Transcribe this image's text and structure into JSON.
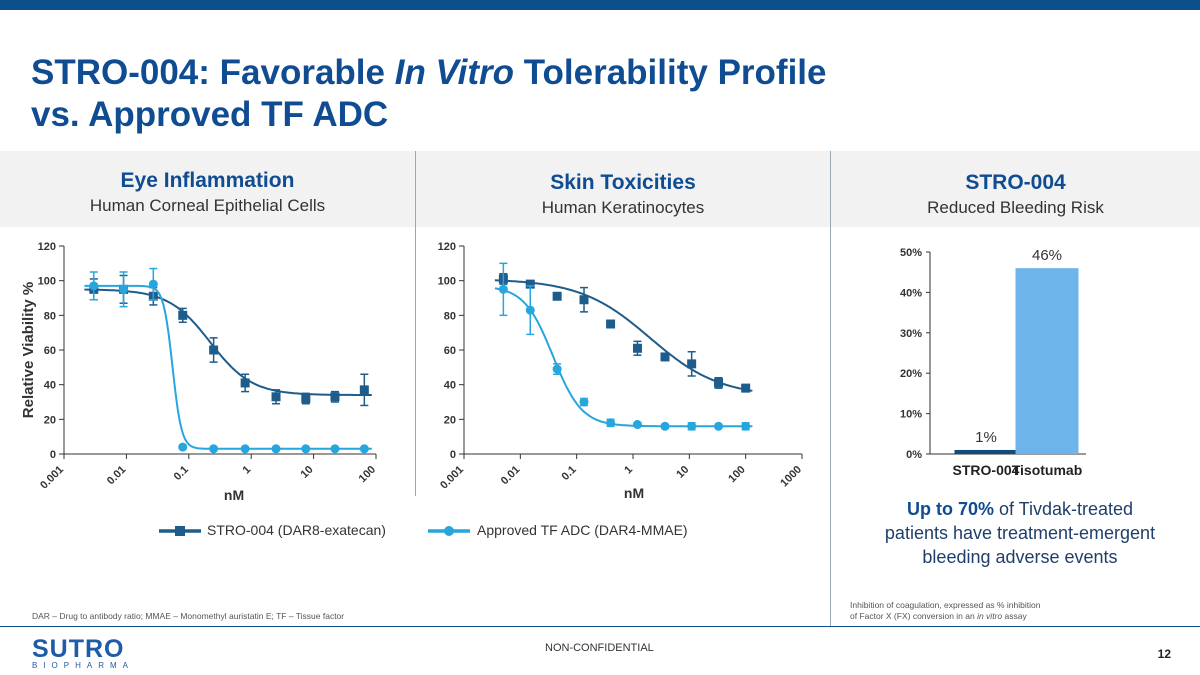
{
  "slide": {
    "title_part1": "STRO-004: Favorable",
    "title_italic": "In Vitro",
    "title_part2": "Tolerability Profile",
    "title_line2": "vs. Approved TF ADC",
    "page_number": "12",
    "confidentiality": "NON-CONFIDENTIAL",
    "logo": "SUTRO",
    "logo_sub": "BIOPHARMA"
  },
  "panels": [
    {
      "heading": "Eye Inflammation",
      "subheading": "Human Corneal Epithelial Cells"
    },
    {
      "heading": "Skin Toxicities",
      "subheading": "Human Keratinocytes"
    },
    {
      "heading": "STRO-004",
      "subheading": "Reduced Bleeding Risk"
    }
  ],
  "legend": {
    "stro004": "STRO-004 (DAR8-exatecan)",
    "approved": "Approved TF ADC (DAR4-MMAE)"
  },
  "colors": {
    "dark": "#1e5c8c",
    "light": "#27a6dd",
    "bar_dark": "#0f4c81",
    "bar_light": "#6cb4ea",
    "title": "#0f4c92"
  },
  "callout": {
    "bold": "Up to 70%",
    "rest1": " of Tivdak-treated",
    "line2": "patients have treatment-emergent",
    "line3": "bleeding adverse events"
  },
  "footnotes": {
    "left": "DAR – Drug to antibody ratio; MMAE – Monomethyl auristatin E; TF – Tissue factor",
    "right_line1": "Inhibition of coagulation, expressed as % inhibition",
    "right_line2_prefix": "of Factor X (FX) conversion in an ",
    "right_line2_italic": "in vitro",
    "right_line2_suffix": " assay"
  },
  "chart_data": [
    {
      "type": "line",
      "title": "Eye Inflammation",
      "xlabel": "nM",
      "ylabel": "Relative Viability %",
      "xscale": "log",
      "xlim": [
        0.001,
        100
      ],
      "ylim": [
        0,
        120
      ],
      "xticks": [
        "0.001",
        "0.01",
        "0.1",
        "1",
        "10",
        "100"
      ],
      "yticks": [
        "0",
        "20",
        "40",
        "60",
        "80",
        "100",
        "120"
      ],
      "series": [
        {
          "name": "STRO-004 (DAR8-exatecan)",
          "x": [
            0.003,
            0.009,
            0.027,
            0.08,
            0.25,
            0.8,
            2.5,
            7.5,
            22,
            65
          ],
          "y": [
            95,
            95,
            91,
            80,
            60,
            41,
            33,
            32,
            33,
            37
          ],
          "err": [
            6,
            8,
            5,
            4,
            7,
            5,
            4,
            3,
            3,
            9
          ],
          "curve": {
            "top": 95,
            "bottom": 34,
            "ic50": 0.22,
            "hill": 1.3
          }
        },
        {
          "name": "Approved TF ADC (DAR4-MMAE)",
          "x": [
            0.003,
            0.009,
            0.027,
            0.08,
            0.25,
            0.8,
            2.5,
            7.5,
            22,
            65
          ],
          "y": [
            97,
            95,
            98,
            4,
            3,
            3,
            3,
            3,
            3,
            3
          ],
          "err": [
            8,
            10,
            9,
            0,
            0,
            0,
            0,
            0,
            0,
            0
          ],
          "curve": {
            "top": 97,
            "bottom": 3,
            "ic50": 0.055,
            "hill": 6
          }
        }
      ]
    },
    {
      "type": "line",
      "title": "Skin Toxicities",
      "xlabel": "nM",
      "xscale": "log",
      "xlim": [
        0.001,
        1000
      ],
      "ylim": [
        0,
        120
      ],
      "xticks": [
        "0.001",
        "0.01",
        "0.1",
        "1",
        "10",
        "100",
        "1000"
      ],
      "yticks": [
        "0",
        "20",
        "40",
        "60",
        "80",
        "100",
        "120"
      ],
      "series": [
        {
          "name": "STRO-004 (DAR8-exatecan)",
          "x": [
            0.005,
            0.015,
            0.045,
            0.135,
            0.4,
            1.2,
            3.7,
            11,
            33,
            100
          ],
          "y": [
            101,
            98,
            91,
            89,
            75,
            61,
            56,
            52,
            41,
            38
          ],
          "err": [
            3,
            2,
            2,
            7,
            2,
            4,
            2,
            7,
            3,
            2
          ],
          "curve": {
            "top": 101,
            "bottom": 33,
            "ic50": 2.0,
            "hill": 0.7
          }
        },
        {
          "name": "Approved TF ADC (DAR4-MMAE)",
          "x": [
            0.005,
            0.015,
            0.045,
            0.135,
            0.4,
            1.2,
            3.7,
            11,
            33,
            100
          ],
          "y": [
            95,
            83,
            49,
            30,
            18,
            17,
            16,
            16,
            16,
            16
          ],
          "err": [
            15,
            14,
            3,
            2,
            2,
            1,
            1,
            2,
            1,
            2
          ],
          "curve": {
            "top": 97,
            "bottom": 16,
            "ic50": 0.038,
            "hill": 1.7
          }
        }
      ]
    },
    {
      "type": "bar",
      "categories": [
        "STRO-004",
        "Tisotumab"
      ],
      "values": [
        1,
        46
      ],
      "labels": [
        "1%",
        "46%"
      ],
      "ylim": [
        0,
        50
      ],
      "yticks": [
        "0%",
        "10%",
        "20%",
        "30%",
        "40%",
        "50%"
      ]
    }
  ]
}
